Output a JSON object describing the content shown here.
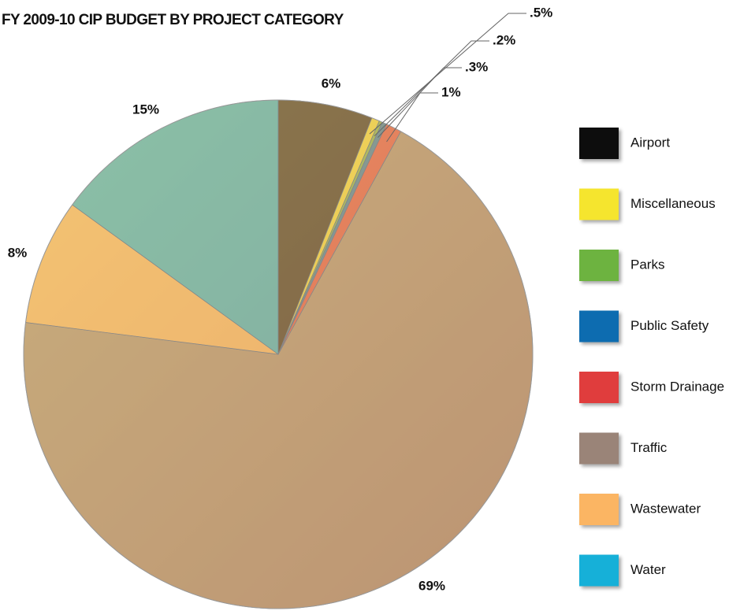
{
  "chart_data": {
    "type": "pie",
    "title": "FY 2009-10 CIP BUDGET BY PROJECT CATEGORY",
    "categories": [
      "Airport",
      "Miscellaneous",
      "Parks",
      "Public Safety",
      "Storm Drainage",
      "Traffic",
      "Wastewater",
      "Water"
    ],
    "values": [
      6,
      0.5,
      0.2,
      0.3,
      1,
      69,
      8,
      15
    ],
    "value_labels": [
      "6%",
      ".5%",
      ".2%",
      ".3%",
      "1%",
      "69%",
      "8%",
      "15%"
    ],
    "colors": [
      "#111111",
      "#f5e52e",
      "#6db33f",
      "#0f6cb0",
      "#e03c3c",
      "#9a8478",
      "#fbb563",
      "#12b0d8"
    ],
    "legend": "right"
  }
}
